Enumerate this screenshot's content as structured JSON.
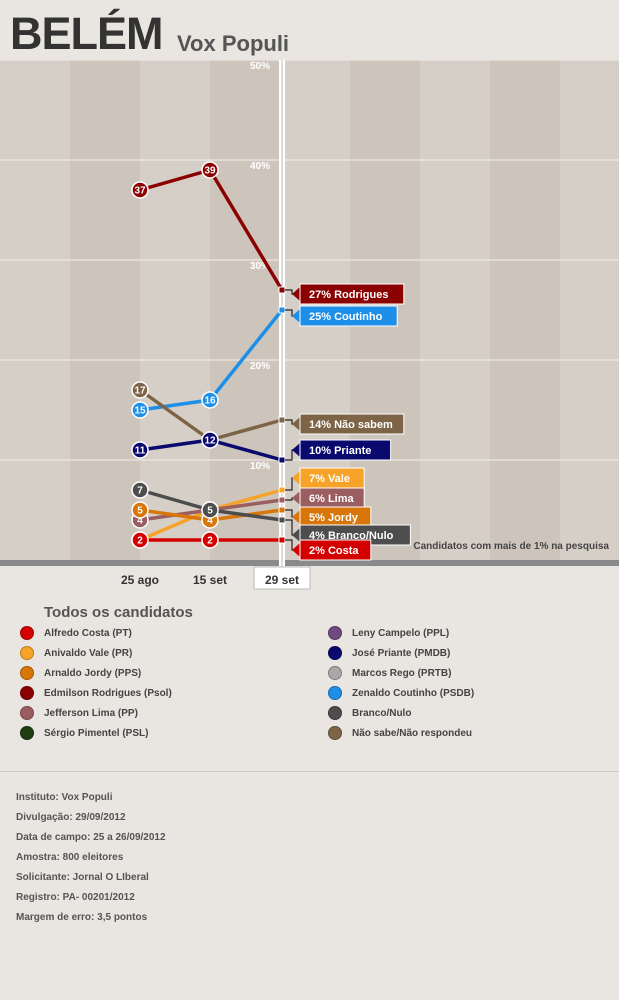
{
  "header": {
    "title": "BELÉM",
    "subtitle": "Vox Populi"
  },
  "chart_data": {
    "type": "line",
    "categories": [
      "25 ago",
      "15 set",
      "29 set"
    ],
    "ylim": [
      0,
      50
    ],
    "yticks": [
      "10%",
      "20%",
      "30%",
      "40%",
      "50%"
    ],
    "selected_category": "29 set",
    "note": "Candidatos com mais de 1% na pesquisa",
    "series": [
      {
        "id": "rodrigues",
        "values": [
          37,
          39,
          27
        ],
        "point_labels": [
          "37",
          "39"
        ],
        "end_label": "27% Rodrigues",
        "color": "#8b0000"
      },
      {
        "id": "coutinho",
        "values": [
          15,
          16,
          25
        ],
        "point_labels": [
          "15",
          "16"
        ],
        "end_label": "25% Coutinho",
        "color": "#1e8fe8"
      },
      {
        "id": "naosabem",
        "values": [
          17,
          12,
          14
        ],
        "point_labels": [
          "17",
          "12"
        ],
        "end_label": "14% Não sabem",
        "color": "#7d6446"
      },
      {
        "id": "priante",
        "values": [
          11,
          12,
          10
        ],
        "point_labels": [
          "11",
          "12"
        ],
        "end_label": "10% Priante",
        "color": "#0a0a6e"
      },
      {
        "id": "vale",
        "values": [
          2,
          5,
          7
        ],
        "point_labels": [
          "2",
          "5"
        ],
        "end_label": "7% Vale",
        "color": "#f7a32a"
      },
      {
        "id": "lima",
        "values": [
          4,
          5,
          6
        ],
        "point_labels": [
          "4",
          "5"
        ],
        "end_label": "6% Lima",
        "color": "#9a5e60"
      },
      {
        "id": "jordy",
        "values": [
          5,
          4,
          5
        ],
        "point_labels": [
          "5",
          "4"
        ],
        "end_label": "5% Jordy",
        "color": "#d8760a"
      },
      {
        "id": "branco",
        "values": [
          7,
          5,
          4
        ],
        "point_labels": [
          "7",
          "5"
        ],
        "end_label": "4% Branco/Nulo",
        "color": "#4d4d4d"
      },
      {
        "id": "costa",
        "values": [
          2,
          2,
          2
        ],
        "point_labels": [
          "2",
          "2"
        ],
        "end_label": "2% Costa",
        "color": "#d40000"
      }
    ]
  },
  "legend": {
    "title": "Todos os candidatos",
    "items": [
      {
        "label": "Alfredo Costa (PT)",
        "color": "#d40000"
      },
      {
        "label": "Anivaldo Vale (PR)",
        "color": "#f7a32a"
      },
      {
        "label": "Arnaldo Jordy (PPS)",
        "color": "#d8760a"
      },
      {
        "label": "Edmilson Rodrigues (Psol)",
        "color": "#8b0000"
      },
      {
        "label": "Jefferson Lima (PP)",
        "color": "#9a5e60"
      },
      {
        "label": "Sérgio Pimentel (PSL)",
        "color": "#1e3d12"
      },
      {
        "label": "Leny Campelo (PPL)",
        "color": "#6e4a80"
      },
      {
        "label": "José Priante (PMDB)",
        "color": "#0a0a6e"
      },
      {
        "label": "Marcos Rego (PRTB)",
        "color": "#a8a8a8"
      },
      {
        "label": "Zenaldo Coutinho (PSDB)",
        "color": "#1e8fe8"
      },
      {
        "label": "Branco/Nulo",
        "color": "#4d4d4d"
      },
      {
        "label": "Não sabe/Não respondeu",
        "color": "#7d6446"
      }
    ]
  },
  "info": [
    "Instituto: Vox Populi",
    "Divulgação: 29/09/2012",
    "Data de campo: 25 a 26/09/2012",
    "Amostra: 800 eleitores",
    "Solicitante: Jornal O LIberal",
    "Registro: PA- 00201/2012",
    "Margem de erro: 3,5 pontos"
  ]
}
